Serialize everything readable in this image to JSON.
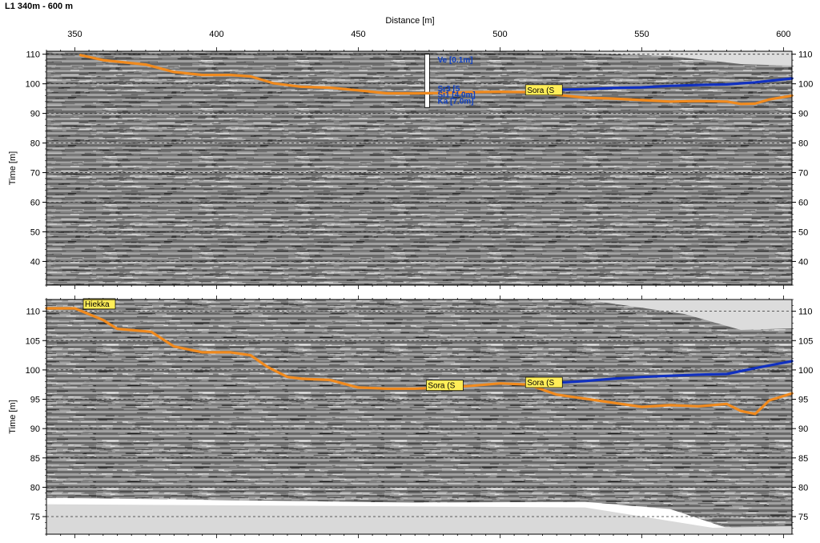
{
  "header": {
    "title": "L1 340m  - 600 m",
    "xlabel": "Distance [m]"
  },
  "colors": {
    "orange_horizon": "#f08a1e",
    "blue_horizon": "#1030c0",
    "label_bg": "#ffee58",
    "grid": "#333333"
  },
  "chart_data": [
    {
      "type": "line",
      "panel": "upper",
      "background": "gpr-radargram",
      "xlabel": "Distance [m]",
      "ylabel": "Time [m]",
      "xlim": [
        340,
        603
      ],
      "ylim": [
        32,
        111
      ],
      "x_ticks": [
        350,
        400,
        450,
        500,
        550,
        600
      ],
      "y_ticks": [
        40,
        50,
        60,
        70,
        80,
        90,
        100,
        110
      ],
      "grid": "horizontal dashed",
      "series": [
        {
          "color": "orange",
          "x": [
            352,
            360,
            375,
            385,
            395,
            405,
            412,
            420,
            430,
            440,
            450,
            460,
            470,
            480,
            490,
            500,
            510,
            520,
            530,
            540,
            550,
            560,
            570,
            580,
            585,
            590,
            595,
            603
          ],
          "y": [
            109.7,
            108,
            106.5,
            104,
            103,
            103,
            102.5,
            100.2,
            99,
            98.7,
            97.8,
            96.8,
            96.8,
            96.9,
            97.2,
            97.3,
            97.2,
            96.3,
            95.3,
            95,
            94.5,
            94,
            94.2,
            94,
            93.2,
            93.3,
            94.7,
            96
          ]
        },
        {
          "color": "blue",
          "x": [
            520,
            530,
            540,
            550,
            560,
            570,
            580,
            590,
            603
          ],
          "y": [
            98,
            98.2,
            98.6,
            98.8,
            99.3,
            99.6,
            99.8,
            100.5,
            101.8
          ]
        }
      ],
      "annotations": [
        {
          "text": "Sora (S",
          "x": 509,
          "y": 97.8
        },
        {
          "text": "Ve [0.1m]",
          "x": 478,
          "y": 108.3
        },
        {
          "text": "Sr3 [5",
          "x": 478,
          "y": 98.6
        },
        {
          "text": "Si1 [4.0m]",
          "x": 478,
          "y": 96.5
        },
        {
          "text": "Ka [7.0m]",
          "x": 478,
          "y": 94.4
        }
      ],
      "borehole": {
        "x": 474,
        "y_top": 110,
        "y_bottom": 92
      }
    },
    {
      "type": "line",
      "panel": "lower",
      "background": "gpr-radargram",
      "xlabel": "",
      "ylabel": "Time [m]",
      "xlim": [
        340,
        603
      ],
      "ylim": [
        72,
        112
      ],
      "x_ticks": [
        350,
        400,
        450,
        500,
        550,
        600
      ],
      "y_ticks": [
        75,
        80,
        85,
        90,
        95,
        100,
        105,
        110
      ],
      "grid": "horizontal dashed",
      "series": [
        {
          "color": "orange",
          "x": [
            340,
            350,
            360,
            365,
            370,
            377,
            385,
            395,
            405,
            412,
            418,
            425,
            430,
            440,
            450,
            460,
            470,
            480,
            490,
            500,
            510,
            520,
            530,
            540,
            550,
            560,
            570,
            580,
            585,
            590,
            595,
            603
          ],
          "y": [
            110.5,
            110.5,
            108.5,
            107,
            106.8,
            106.5,
            104,
            103,
            103,
            102.5,
            100.5,
            98.8,
            98.5,
            98.3,
            97,
            96.8,
            96.8,
            97,
            97.3,
            97.7,
            97.5,
            95.8,
            95.1,
            94.4,
            93.7,
            94,
            93.8,
            94.2,
            93,
            92.5,
            94.8,
            96
          ]
        },
        {
          "color": "blue",
          "x": [
            520,
            530,
            540,
            550,
            560,
            570,
            580,
            590,
            603
          ],
          "y": [
            97.8,
            98.1,
            98.5,
            98.8,
            99.0,
            99.2,
            99.3,
            100.3,
            101.5
          ]
        }
      ],
      "annotations": [
        {
          "text": "Hiekka",
          "x": 353,
          "y": 111.2
        },
        {
          "text": "Sora (S",
          "x": 474,
          "y": 97.3
        },
        {
          "text": "Sora (S",
          "x": 509,
          "y": 97.8
        }
      ]
    }
  ]
}
